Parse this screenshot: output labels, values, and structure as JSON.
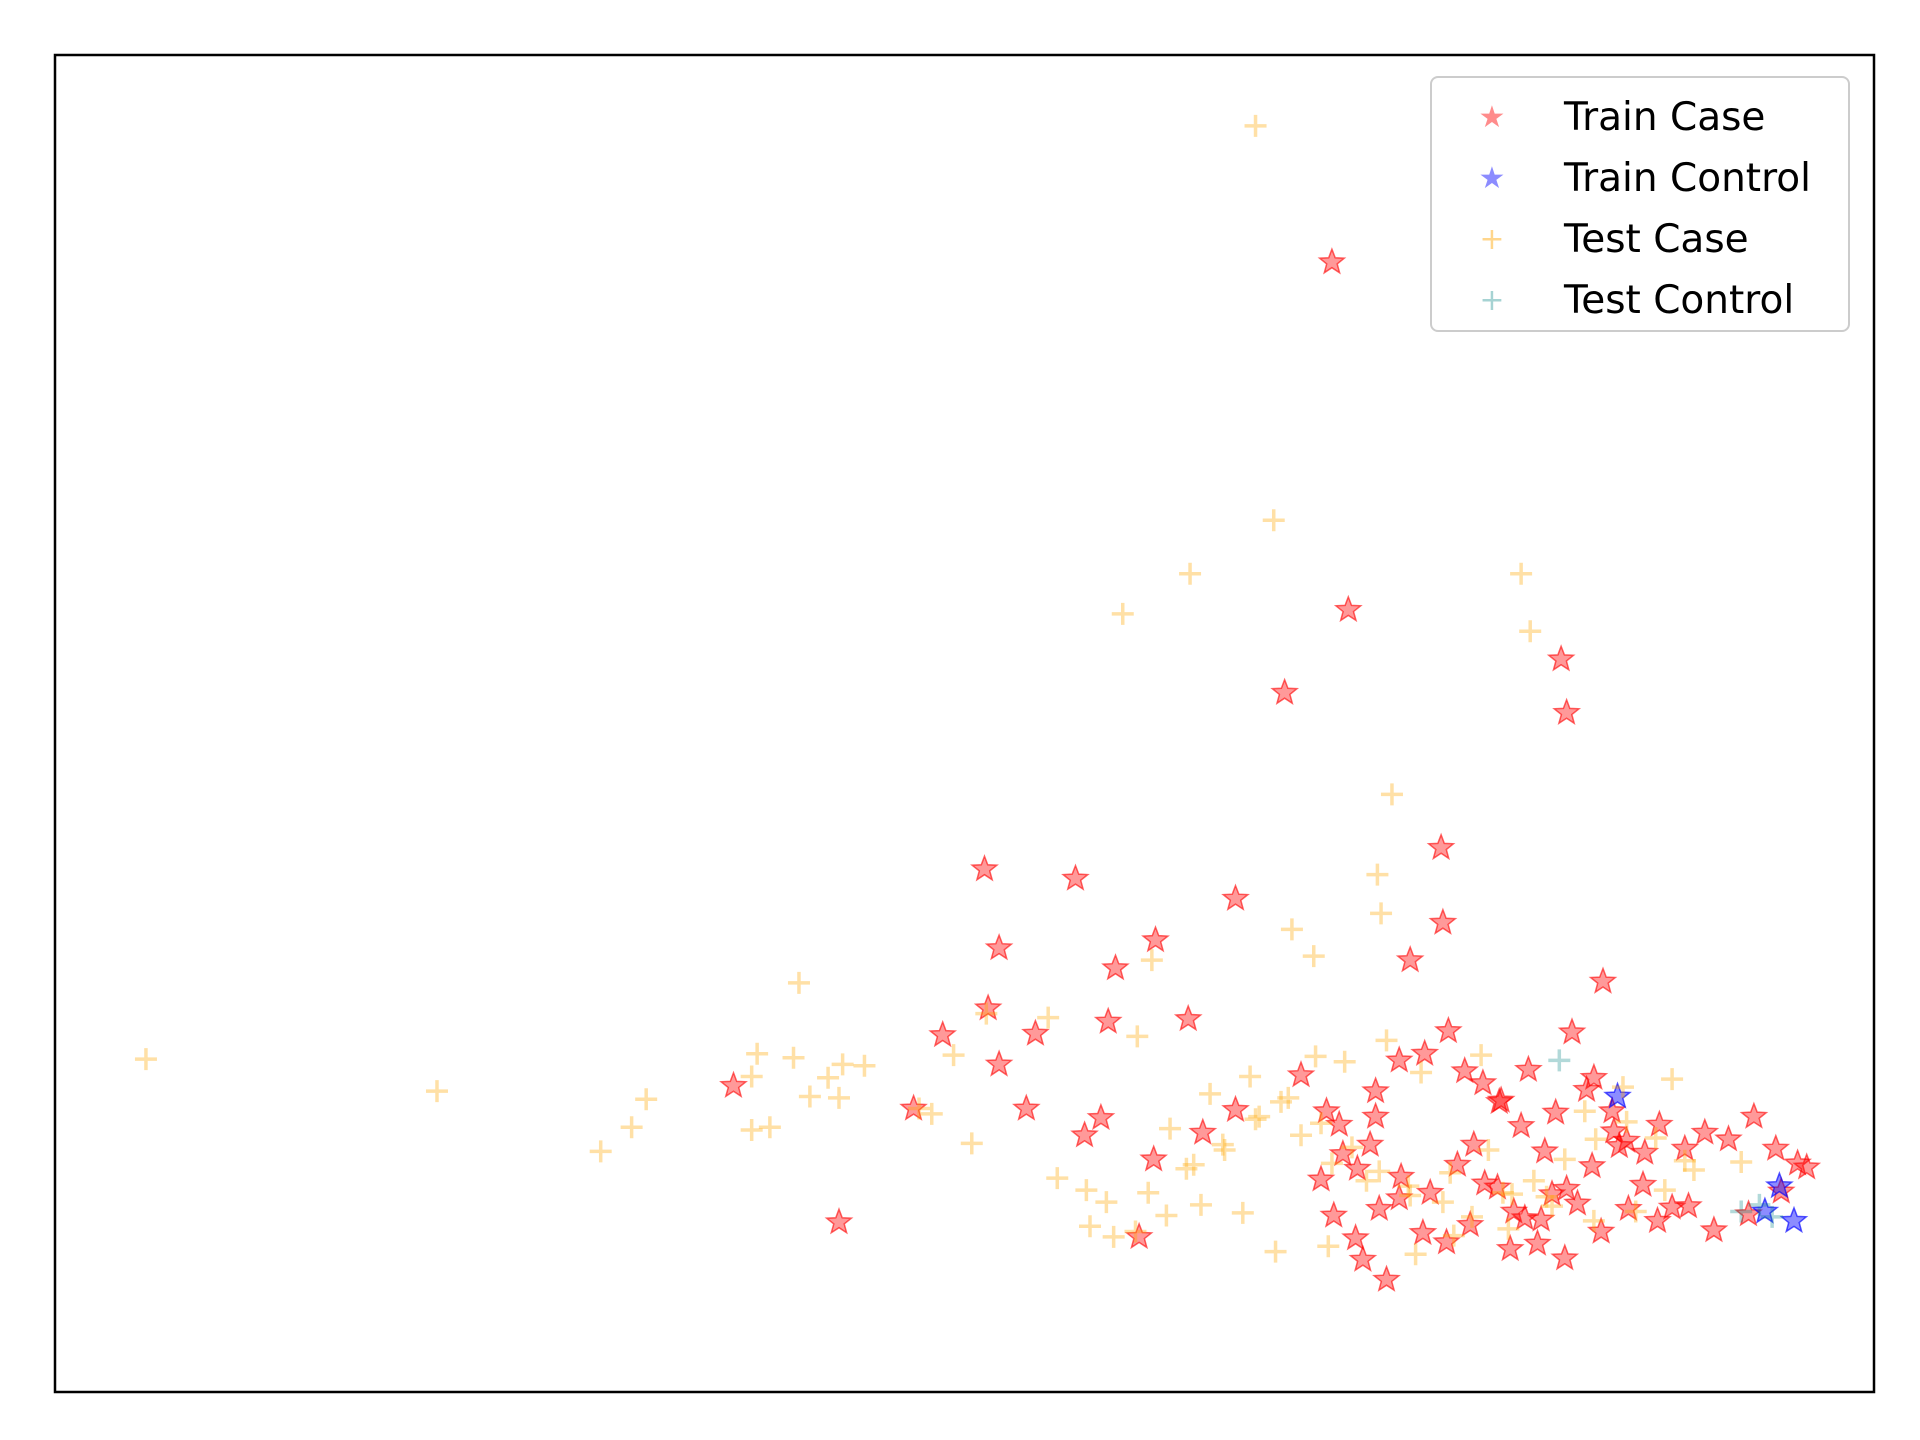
{
  "colors": {
    "train_case": "#ff0000",
    "train_control": "#0000ff",
    "test_case": "#ffa500",
    "test_control": "#008080"
  },
  "legend": {
    "placement": "upper-right",
    "items": [
      {
        "label": "Train Case",
        "marker": "star-icon",
        "color": "#ff0000"
      },
      {
        "label": "Train Control",
        "marker": "star-icon",
        "color": "#0000ff"
      },
      {
        "label": "Test Case",
        "marker": "plus-icon",
        "color": "#ffa500"
      },
      {
        "label": "Test Control",
        "marker": "plus-icon",
        "color": "#008080"
      }
    ]
  },
  "chart_data": {
    "type": "scatter",
    "title": "",
    "xlabel": "",
    "ylabel": "",
    "xticks": false,
    "yticks": false,
    "grid": false,
    "xlim": [
      0,
      100
    ],
    "ylim": [
      0,
      100
    ],
    "series": [
      {
        "name": "Train Case",
        "marker": "star",
        "color": "#ff0000",
        "alpha": 0.4,
        "x": [
          70.2,
          71.1,
          67.6,
          82.8,
          83.1,
          56.1,
          64.9,
          76.2,
          76.3,
          85.1,
          51.1,
          60.5,
          51.9,
          51.3,
          58.3,
          57.9,
          62.3,
          74.5,
          75.3,
          72.6,
          68.5,
          69.9,
          64.9,
          63.1,
          57.5,
          56.6,
          47.2,
          37.3,
          43.1,
          51.9,
          53.9,
          59.6,
          60.4,
          48.8,
          53.4,
          71.6,
          72.6,
          73.9,
          76.6,
          77.5,
          78.5,
          79.4,
          80.6,
          81.9,
          83.4,
          84.6,
          85.6,
          86.4,
          87.4,
          88.2,
          89.6,
          90.7,
          92.0,
          93.4,
          94.6,
          95.8,
          96.3,
          94.9,
          93.1,
          91.2,
          89.8,
          88.1,
          86.5,
          85.0,
          83.7,
          82.3,
          80.8,
          79.3,
          77.8,
          76.5,
          75.2,
          73.9,
          72.8,
          71.5,
          70.3,
          69.6,
          70.8,
          72.3,
          74.0,
          75.6,
          77.1,
          78.6,
          80.2,
          81.7,
          83.1,
          84.5,
          86.0,
          87.3,
          88.9,
          78.0,
          79.5,
          81.0,
          82.5,
          84.2,
          85.7,
          80.0,
          81.5,
          83.0,
          73.2,
          71.9,
          70.6
        ],
        "y": [
          84.5,
          58.5,
          52.3,
          54.8,
          50.8,
          38.4,
          36.9,
          40.7,
          35.1,
          30.7,
          39.1,
          33.8,
          33.2,
          28.7,
          31.7,
          27.7,
          27.9,
          32.3,
          25.3,
          20.6,
          23.7,
          21.0,
          21.1,
          19.4,
          20.5,
          19.2,
          21.2,
          22.9,
          12.7,
          24.5,
          26.8,
          11.6,
          17.4,
          26.7,
          21.2,
          16.7,
          22.5,
          24.8,
          27.0,
          24.0,
          23.1,
          21.7,
          19.9,
          18.0,
          26.9,
          23.5,
          21.0,
          18.8,
          17.9,
          20.0,
          18.2,
          19.4,
          18.9,
          20.6,
          18.2,
          17.1,
          16.8,
          15.0,
          13.3,
          12.1,
          13.9,
          12.8,
          13.7,
          12.0,
          14.1,
          14.8,
          13.0,
          15.3,
          12.5,
          11.2,
          11.9,
          14.5,
          13.7,
          11.5,
          13.2,
          15.9,
          17.8,
          18.5,
          16.1,
          14.9,
          17.0,
          15.6,
          13.5,
          12.9,
          15.2,
          16.9,
          18.4,
          15.5,
          13.8,
          18.5,
          21.8,
          24.1,
          20.9,
          22.6,
          19.5,
          10.7,
          11.1,
          10.0,
          8.4,
          9.9,
          20.0
        ]
      },
      {
        "name": "Train Control",
        "marker": "star",
        "color": "#0000ff",
        "alpha": 0.45,
        "x": [
          85.9,
          94.8,
          94.0,
          95.6
        ],
        "y": [
          22.1,
          15.4,
          13.5,
          12.8
        ]
      },
      {
        "name": "Test Case",
        "marker": "plus",
        "color": "#ffa500",
        "alpha": 0.35,
        "x": [
          66.0,
          67.0,
          62.4,
          58.7,
          80.6,
          81.1,
          73.5,
          72.7,
          72.9,
          60.3,
          51.2,
          49.4,
          54.6,
          59.5,
          69.2,
          68.0,
          40.9,
          38.6,
          38.3,
          21.0,
          5.0,
          32.5,
          31.7,
          30.0,
          38.3,
          41.5,
          42.5,
          40.6,
          44.5,
          47.5,
          48.2,
          43.3,
          43.1,
          39.3,
          50.4,
          55.1,
          56.7,
          57.8,
          60.1,
          62.2,
          64.2,
          66.0,
          68.5,
          70.2,
          72.1,
          74.5,
          76.7,
          78.8,
          80.1,
          82.3,
          84.6,
          86.9,
          88.5,
          90.1,
          92.7,
          78.4,
          75.1,
          73.2,
          70.9,
          69.3,
          67.8,
          66.2,
          64.3,
          62.6,
          61.3,
          63.5,
          65.7,
          67.4,
          69.6,
          71.3,
          72.8,
          74.4,
          76.3,
          77.9,
          79.6,
          81.3,
          83.0,
          84.7,
          86.4,
          88.0,
          89.6,
          65.3,
          63.0,
          61.1,
          59.4,
          58.2,
          56.9,
          67.1,
          70.0,
          74.8,
          76.9,
          79.9,
          82.0,
          84.1,
          86.2,
          88.9
        ],
        "y": [
          94.7,
          65.2,
          61.2,
          58.2,
          61.2,
          56.9,
          44.7,
          38.7,
          35.8,
          32.3,
          28.3,
          25.2,
          28.0,
          26.6,
          32.6,
          34.6,
          30.6,
          25.3,
          23.6,
          22.5,
          24.9,
          21.9,
          19.8,
          18.0,
          19.6,
          22.1,
          23.5,
          25.0,
          24.4,
          21.2,
          20.8,
          24.5,
          22.0,
          19.8,
          18.6,
          16.0,
          15.1,
          14.2,
          14.9,
          16.7,
          18.5,
          20.4,
          19.2,
          17.1,
          15.8,
          14.7,
          16.4,
          18.1,
          14.8,
          13.9,
          12.8,
          13.5,
          15.1,
          16.6,
          17.2,
          25.2,
          23.9,
          26.3,
          24.7,
          25.1,
          22.0,
          20.6,
          18.1,
          17.0,
          19.7,
          22.3,
          23.6,
          21.7,
          20.1,
          18.3,
          16.5,
          15.4,
          14.2,
          13.1,
          14.9,
          15.8,
          17.4,
          18.9,
          20.2,
          19.0,
          17.3,
          13.4,
          14.0,
          13.2,
          12.0,
          11.6,
          12.4,
          10.5,
          10.9,
          10.3,
          11.7,
          12.2,
          14.6,
          21.0,
          22.8,
          23.4
        ]
      },
      {
        "name": "Test Control",
        "marker": "plus",
        "color": "#008080",
        "alpha": 0.3,
        "x": [
          82.7,
          92.7,
          93.7,
          94.4
        ],
        "y": [
          24.8,
          13.5,
          14.0,
          13.1
        ]
      }
    ]
  }
}
